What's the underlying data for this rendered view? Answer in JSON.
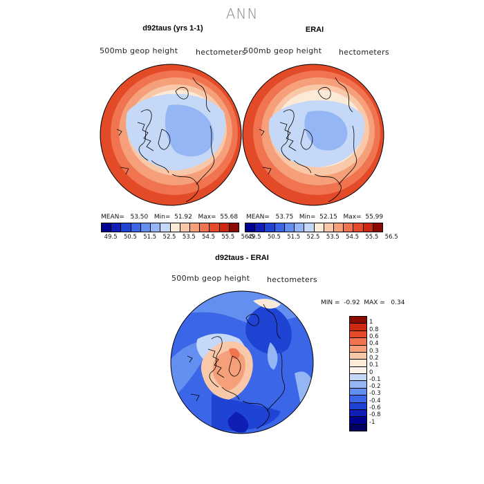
{
  "title": "ANN",
  "panels": [
    {
      "title": "d92taus (yrs 1-1)",
      "left_label": "500mb  geop  height",
      "right_label": "hectometers",
      "stats": {
        "mean_label": "MEAN=",
        "mean": "53.50",
        "min_label": "Min=",
        "min": "51.92",
        "max_label": "Max=",
        "max": "55.68"
      }
    },
    {
      "title": "ERAI",
      "left_label": "500mb  geop  height",
      "right_label": "hectometers",
      "stats": {
        "mean_label": "MEAN=",
        "mean": "53.75",
        "min_label": "Min=",
        "min": "52.15",
        "max_label": "Max=",
        "max": "55.99"
      }
    }
  ],
  "colorbar_top": {
    "ticks": [
      "49.5",
      "50.5",
      "51.5",
      "52.5",
      "53.5",
      "54.5",
      "55.5",
      "56.5"
    ],
    "colors": [
      "#000090",
      "#0f1fb4",
      "#1f44d4",
      "#3b66e8",
      "#6390f0",
      "#95b6f5",
      "#c6d8f7",
      "#fbead8",
      "#f8c8a8",
      "#f5a07a",
      "#f07450",
      "#e64a28",
      "#cc2a10",
      "#8a0a00"
    ]
  },
  "diff_panel": {
    "title": "d92taus - ERAI",
    "left_label": "500mb  geop  height",
    "right_label": "hectometers",
    "stats": {
      "min_label": "MIN =",
      "min": "-0.92",
      "max_label": "MAX =",
      "max": "0.34"
    }
  },
  "colorbar_diff": {
    "ticks": [
      "1",
      "0.8",
      "0.6",
      "0.4",
      "0.3",
      "0.2",
      "0.1",
      "0",
      "-0.1",
      "-0.2",
      "-0.3",
      "-0.4",
      "-0.6",
      "-0.8",
      "-1"
    ],
    "colors": [
      "#8a0a00",
      "#cc2a10",
      "#e64a28",
      "#f07450",
      "#f5a07a",
      "#f8c8a8",
      "#fbead8",
      "#fdf3ea",
      "#c6d8f7",
      "#95b6f5",
      "#6390f0",
      "#3b66e8",
      "#1f44d4",
      "#0f1fb4",
      "#000090",
      "#000060"
    ]
  },
  "colors": {
    "outer_ring": "#e24a28",
    "ring2": "#f07450",
    "ring3": "#f5a07a",
    "ring4": "#f8c8a8",
    "ring5": "#fbead8",
    "inner1": "#c6d8f7",
    "inner2": "#95b6f5",
    "diff_bg": "#3b66e8"
  }
}
